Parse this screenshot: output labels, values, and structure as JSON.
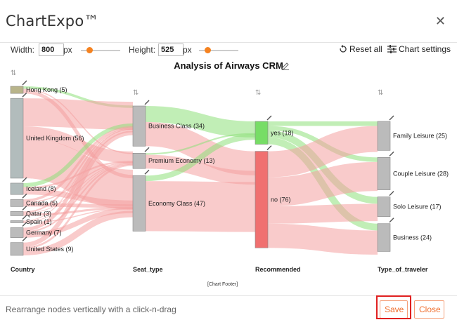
{
  "app": {
    "title": "ChartExpo™",
    "close_icon": "close-icon"
  },
  "toolbar": {
    "width_label": "Width:",
    "width_value": "800",
    "width_unit": "px",
    "width_slider_level": 0.15,
    "height_label": "Height:",
    "height_value": "525",
    "height_unit": "px",
    "height_slider_level": 0.15,
    "reset_label": "Reset all",
    "settings_label": "Chart settings"
  },
  "chart_data": {
    "type": "sankey",
    "title": "Analysis of Airways CRM",
    "footer": "[Chart Footer]",
    "columns": [
      {
        "name": "Country",
        "nodes": [
          {
            "label": "Hong Kong (5)",
            "value": 5,
            "color": "#b8b48a"
          },
          {
            "label": "United Kingdom (56)",
            "value": 56,
            "color": "#b2bcbc"
          },
          {
            "label": "Iceland (8)",
            "value": 8,
            "color": "#b2bcbc"
          },
          {
            "label": "Canada (5)",
            "value": 5,
            "color": "#bbbbbb"
          },
          {
            "label": "Qatar (3)",
            "value": 3,
            "color": "#bbbbbb"
          },
          {
            "label": "Spain (1)",
            "value": 1,
            "color": "#bbbbbb"
          },
          {
            "label": "Germany (7)",
            "value": 7,
            "color": "#bbbbbb"
          },
          {
            "label": "United States (9)",
            "value": 9,
            "color": "#bbbbbb"
          }
        ]
      },
      {
        "name": "Seat_type",
        "nodes": [
          {
            "label": "Business Class (34)",
            "value": 34,
            "color": "#bbbbbb"
          },
          {
            "label": "Premium Economy (13)",
            "value": 13,
            "color": "#bbbbbb"
          },
          {
            "label": "Economy Class (47)",
            "value": 47,
            "color": "#bbbbbb"
          }
        ]
      },
      {
        "name": "Recommended",
        "nodes": [
          {
            "label": "yes (18)",
            "value": 18,
            "color": "#77dd66"
          },
          {
            "label": "no (76)",
            "value": 76,
            "color": "#f07070"
          }
        ]
      },
      {
        "name": "Type_of_traveler",
        "nodes": [
          {
            "label": "Family Leisure (25)",
            "value": 25,
            "color": "#bbbbbb"
          },
          {
            "label": "Couple Leisure (28)",
            "value": 28,
            "color": "#bbbbbb"
          },
          {
            "label": "Solo Leisure (17)",
            "value": 17,
            "color": "#bbbbbb"
          },
          {
            "label": "Business (24)",
            "value": 24,
            "color": "#bbbbbb"
          }
        ]
      }
    ],
    "link_colors": {
      "yes": "#8ee07a",
      "no": "#f4a0a0"
    }
  },
  "footer": {
    "hint": "Rearrange nodes vertically with a click-n-drag",
    "save_label": "Save",
    "close_label": "Close"
  }
}
